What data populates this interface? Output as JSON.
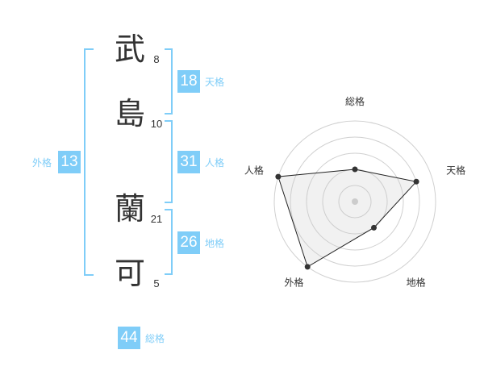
{
  "name": {
    "chars": [
      {
        "char": "武",
        "strokes": "8"
      },
      {
        "char": "島",
        "strokes": "10"
      },
      {
        "char": "蘭",
        "strokes": "21"
      },
      {
        "char": "可",
        "strokes": "5"
      }
    ]
  },
  "kaku": {
    "tenkaku": {
      "label": "天格",
      "value": "18"
    },
    "jinkaku": {
      "label": "人格",
      "value": "31"
    },
    "chikaku": {
      "label": "地格",
      "value": "26"
    },
    "gaikaku": {
      "label": "外格",
      "value": "13"
    },
    "soukaku": {
      "label": "総格",
      "value": "44"
    }
  },
  "colors": {
    "accent": "#7fcdf8",
    "text": "#333333"
  },
  "chart_data": {
    "type": "radar",
    "axes": [
      "総格",
      "天格",
      "地格",
      "外格",
      "人格"
    ],
    "values": [
      2,
      4,
      2,
      5,
      5
    ],
    "range": [
      0,
      5
    ],
    "rings": 5
  }
}
